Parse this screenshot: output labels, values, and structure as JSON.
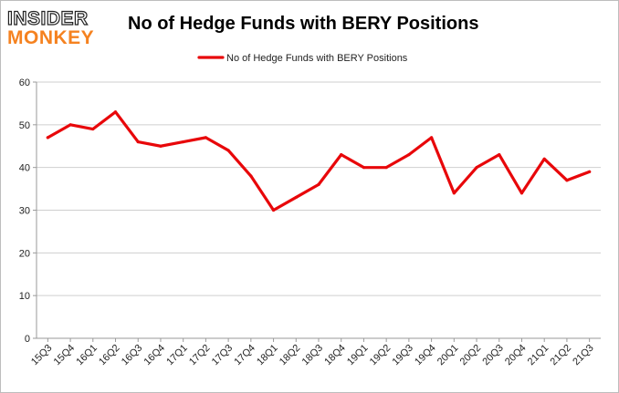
{
  "logo": {
    "line1": "INSIDER",
    "line2": "MONKEY"
  },
  "colors": {
    "series": "#e8070a",
    "grid": "#cfcfcf",
    "axis": "#9a9a9a",
    "logo_accent": "#f58220"
  },
  "chart_data": {
    "type": "line",
    "title": "No of Hedge Funds with BERY Positions",
    "xlabel": "",
    "ylabel": "",
    "ylim": [
      0,
      60
    ],
    "yticks": [
      0,
      10,
      20,
      30,
      40,
      50,
      60
    ],
    "grid": true,
    "legend_position": "top-center",
    "categories": [
      "15Q3",
      "15Q4",
      "16Q1",
      "16Q2",
      "16Q3",
      "16Q4",
      "17Q1",
      "17Q2",
      "17Q3",
      "17Q4",
      "18Q1",
      "18Q2",
      "18Q3",
      "18Q4",
      "19Q1",
      "19Q2",
      "19Q3",
      "19Q4",
      "20Q1",
      "20Q2",
      "20Q3",
      "20Q4",
      "21Q1",
      "21Q2",
      "21Q3"
    ],
    "series": [
      {
        "name": "No of Hedge Funds with BERY Positions",
        "values": [
          47,
          50,
          49,
          53,
          46,
          45,
          46,
          47,
          44,
          38,
          30,
          33,
          36,
          43,
          40,
          40,
          43,
          47,
          34,
          40,
          43,
          34,
          42,
          37,
          39
        ]
      }
    ]
  }
}
